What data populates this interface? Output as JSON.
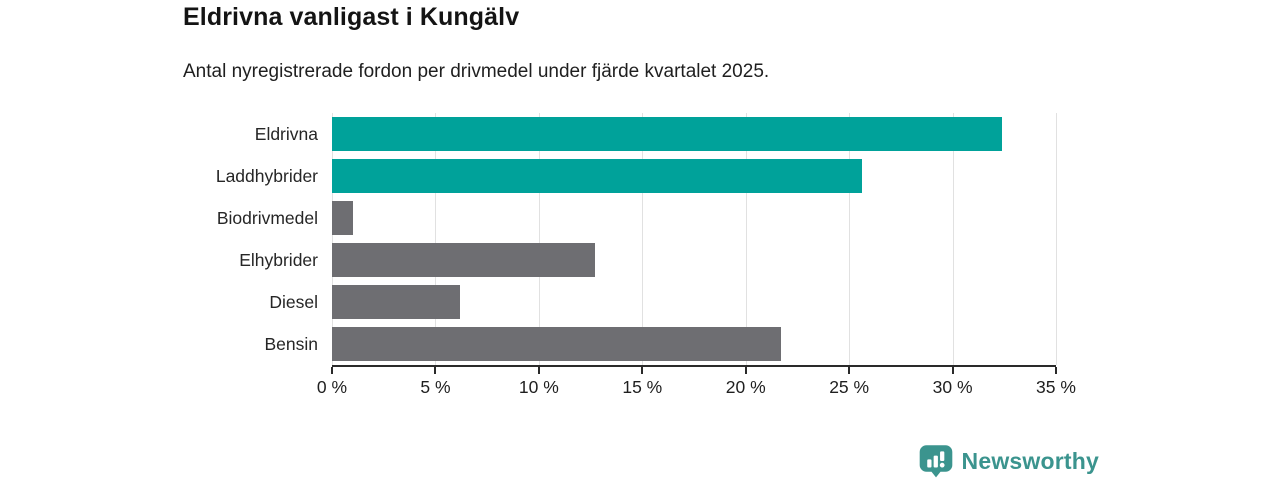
{
  "header": {
    "title": "Eldrivna vanligast i Kungälv",
    "subtitle": "Antal nyregistrerade fordon per drivmedel under fjärde kvartalet 2025."
  },
  "chart_data": {
    "type": "bar",
    "orientation": "horizontal",
    "title": "Eldrivna vanligast i Kungälv",
    "subtitle": "Antal nyregistrerade fordon per drivmedel under fjärde kvartalet 2025.",
    "categories": [
      "Eldrivna",
      "Laddhybrider",
      "Biodrivmedel",
      "Elhybrider",
      "Diesel",
      "Bensin"
    ],
    "values": [
      32.4,
      25.6,
      1.0,
      12.7,
      6.2,
      21.7
    ],
    "unit": "%",
    "bar_colors": [
      "#00a29a",
      "#00a29a",
      "#6e6e72",
      "#6e6e72",
      "#6e6e72",
      "#6e6e72"
    ],
    "highlight_color": "#00a29a",
    "default_color": "#6e6e72",
    "xlim": [
      0,
      35
    ],
    "xticks": [
      0,
      5,
      10,
      15,
      20,
      25,
      30,
      35
    ],
    "xtick_labels": [
      "0 %",
      "5 %",
      "10 %",
      "15 %",
      "20 %",
      "25 %",
      "30 %",
      "35 %"
    ],
    "grid": true,
    "gridline_color": "#e1e1e1",
    "axis_color": "#2a2a2a",
    "legend": "none"
  },
  "footer": {
    "brand": "Newsworthy",
    "brand_color": "#3b948e",
    "logo_icon": "bar-chart-speech-bubble-icon"
  }
}
